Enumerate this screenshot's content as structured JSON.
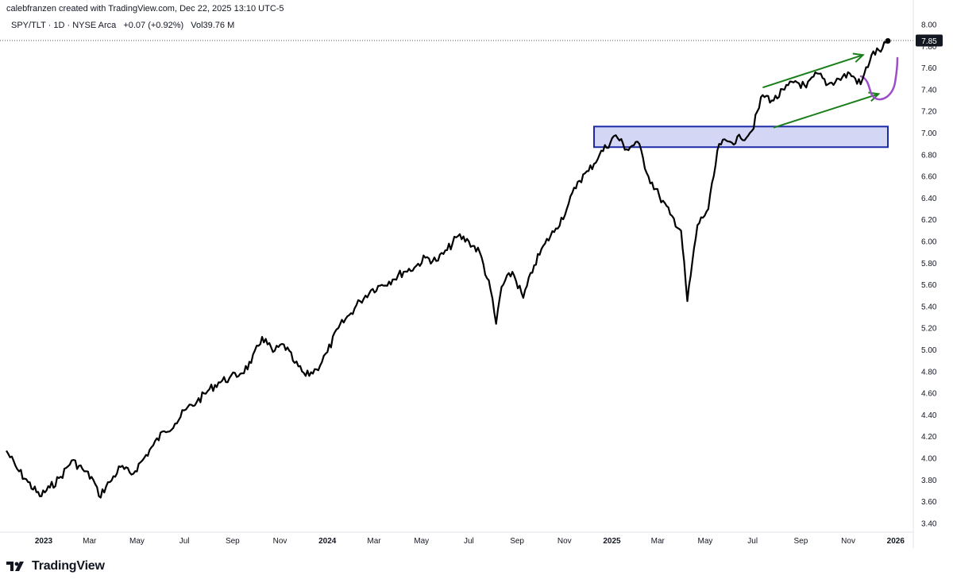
{
  "header": {
    "attribution": "calebfranzen created with TradingView.com, Dec 22, 2025 13:10 UTC-5"
  },
  "legend": {
    "symbol": "SPY/TLT · 1D · NYSE Arca",
    "change": "+0.07 (+0.92%)",
    "volume": "Vol39.76 M"
  },
  "footer": {
    "brand": "TradingView",
    "logo_icon": "tradingview-logo-icon"
  },
  "chart_data": {
    "type": "line",
    "title": "",
    "xlabel": "",
    "ylabel": "",
    "ylim": [
      3.3,
      8.1
    ],
    "y_ticks": [
      "3.40",
      "3.60",
      "3.80",
      "4.00",
      "4.20",
      "4.40",
      "4.60",
      "4.80",
      "5.00",
      "5.20",
      "5.40",
      "5.60",
      "5.80",
      "6.00",
      "6.20",
      "6.40",
      "6.60",
      "6.80",
      "7.00",
      "7.20",
      "7.40",
      "7.60",
      "7.80",
      "8.00"
    ],
    "y_tick_values": [
      3.4,
      3.6,
      3.8,
      4.0,
      4.2,
      4.4,
      4.6,
      4.8,
      5.0,
      5.2,
      5.4,
      5.6,
      5.8,
      6.0,
      6.2,
      6.4,
      6.6,
      6.8,
      7.0,
      7.2,
      7.4,
      7.6,
      7.8,
      8.0
    ],
    "x_ticks": [
      {
        "label": "2023",
        "bold": true
      },
      {
        "label": "Mar",
        "bold": false
      },
      {
        "label": "May",
        "bold": false
      },
      {
        "label": "Jul",
        "bold": false
      },
      {
        "label": "Sep",
        "bold": false
      },
      {
        "label": "Nov",
        "bold": false
      },
      {
        "label": "2024",
        "bold": true
      },
      {
        "label": "Mar",
        "bold": false
      },
      {
        "label": "May",
        "bold": false
      },
      {
        "label": "Jul",
        "bold": false
      },
      {
        "label": "Sep",
        "bold": false
      },
      {
        "label": "Nov",
        "bold": false
      },
      {
        "label": "2025",
        "bold": true
      },
      {
        "label": "Mar",
        "bold": false
      },
      {
        "label": "May",
        "bold": false
      },
      {
        "label": "Jul",
        "bold": false
      },
      {
        "label": "Sep",
        "bold": false
      },
      {
        "label": "Nov",
        "bold": false
      },
      {
        "label": "2026",
        "bold": true
      }
    ],
    "last_value_label": "7.85",
    "last_value": 7.85,
    "series": [
      {
        "color": "#000000",
        "points": [
          [
            "2022-11-14",
            4.07
          ],
          [
            "2022-11-28",
            3.9
          ],
          [
            "2022-12-12",
            3.78
          ],
          [
            "2022-12-27",
            3.65
          ],
          [
            "2023-01-09",
            3.73
          ],
          [
            "2023-01-23",
            3.83
          ],
          [
            "2023-02-06",
            3.98
          ],
          [
            "2023-02-20",
            3.9
          ],
          [
            "2023-03-06",
            3.8
          ],
          [
            "2023-03-13",
            3.65
          ],
          [
            "2023-03-27",
            3.78
          ],
          [
            "2023-04-10",
            3.92
          ],
          [
            "2023-04-24",
            3.85
          ],
          [
            "2023-05-08",
            3.98
          ],
          [
            "2023-05-22",
            4.12
          ],
          [
            "2023-06-05",
            4.25
          ],
          [
            "2023-06-19",
            4.32
          ],
          [
            "2023-07-03",
            4.45
          ],
          [
            "2023-07-17",
            4.52
          ],
          [
            "2023-07-31",
            4.62
          ],
          [
            "2023-08-14",
            4.7
          ],
          [
            "2023-08-28",
            4.74
          ],
          [
            "2023-09-11",
            4.78
          ],
          [
            "2023-09-25",
            4.88
          ],
          [
            "2023-10-09",
            5.12
          ],
          [
            "2023-10-23",
            4.98
          ],
          [
            "2023-11-06",
            5.05
          ],
          [
            "2023-11-20",
            4.88
          ],
          [
            "2023-12-04",
            4.76
          ],
          [
            "2023-12-18",
            4.82
          ],
          [
            "2024-01-01",
            4.98
          ],
          [
            "2024-01-15",
            5.2
          ],
          [
            "2024-01-29",
            5.32
          ],
          [
            "2024-02-12",
            5.45
          ],
          [
            "2024-02-26",
            5.55
          ],
          [
            "2024-03-11",
            5.6
          ],
          [
            "2024-03-25",
            5.65
          ],
          [
            "2024-04-08",
            5.72
          ],
          [
            "2024-04-22",
            5.76
          ],
          [
            "2024-05-06",
            5.85
          ],
          [
            "2024-05-20",
            5.82
          ],
          [
            "2024-06-03",
            5.92
          ],
          [
            "2024-06-17",
            6.05
          ],
          [
            "2024-07-01",
            6.0
          ],
          [
            "2024-07-15",
            5.9
          ],
          [
            "2024-07-29",
            5.55
          ],
          [
            "2024-08-05",
            5.24
          ],
          [
            "2024-08-12",
            5.58
          ],
          [
            "2024-08-26",
            5.72
          ],
          [
            "2024-09-09",
            5.48
          ],
          [
            "2024-09-23",
            5.78
          ],
          [
            "2024-10-07",
            5.98
          ],
          [
            "2024-10-21",
            6.12
          ],
          [
            "2024-11-04",
            6.3
          ],
          [
            "2024-11-18",
            6.55
          ],
          [
            "2024-12-02",
            6.65
          ],
          [
            "2024-12-16",
            6.8
          ],
          [
            "2025-01-06",
            6.98
          ],
          [
            "2025-01-20",
            6.85
          ],
          [
            "2025-02-03",
            6.92
          ],
          [
            "2025-02-17",
            6.6
          ],
          [
            "2025-03-03",
            6.42
          ],
          [
            "2025-03-17",
            6.25
          ],
          [
            "2025-03-31",
            6.1
          ],
          [
            "2025-04-08",
            5.45
          ],
          [
            "2025-04-21",
            6.15
          ],
          [
            "2025-05-05",
            6.3
          ],
          [
            "2025-05-19",
            6.9
          ],
          [
            "2025-06-02",
            6.92
          ],
          [
            "2025-06-16",
            6.95
          ],
          [
            "2025-06-30",
            7.02
          ],
          [
            "2025-07-14",
            7.35
          ],
          [
            "2025-07-28",
            7.3
          ],
          [
            "2025-08-11",
            7.4
          ],
          [
            "2025-08-25",
            7.48
          ],
          [
            "2025-09-08",
            7.42
          ],
          [
            "2025-09-22",
            7.55
          ],
          [
            "2025-10-06",
            7.45
          ],
          [
            "2025-10-20",
            7.5
          ],
          [
            "2025-11-03",
            7.55
          ],
          [
            "2025-11-17",
            7.45
          ],
          [
            "2025-12-01",
            7.72
          ],
          [
            "2025-12-15",
            7.78
          ],
          [
            "2025-12-22",
            7.85
          ]
        ]
      }
    ],
    "annotations": {
      "support_box": {
        "from": "2024-12-09",
        "to": "2025-12-22",
        "y_from": 6.87,
        "y_to": 7.06,
        "color": "#1b2aa5",
        "fill": "#d3d6f5"
      },
      "channel_upper": {
        "from": "2025-07-14",
        "to": "2025-11-20",
        "y_from": 7.42,
        "y_to": 7.72,
        "color": "#1a7f1a"
      },
      "channel_lower": {
        "from": "2025-07-28",
        "to": "2025-12-10",
        "y_from": 7.05,
        "y_to": 7.36,
        "color": "#1a7f1a"
      },
      "arc_color": "#9b4dca"
    }
  }
}
